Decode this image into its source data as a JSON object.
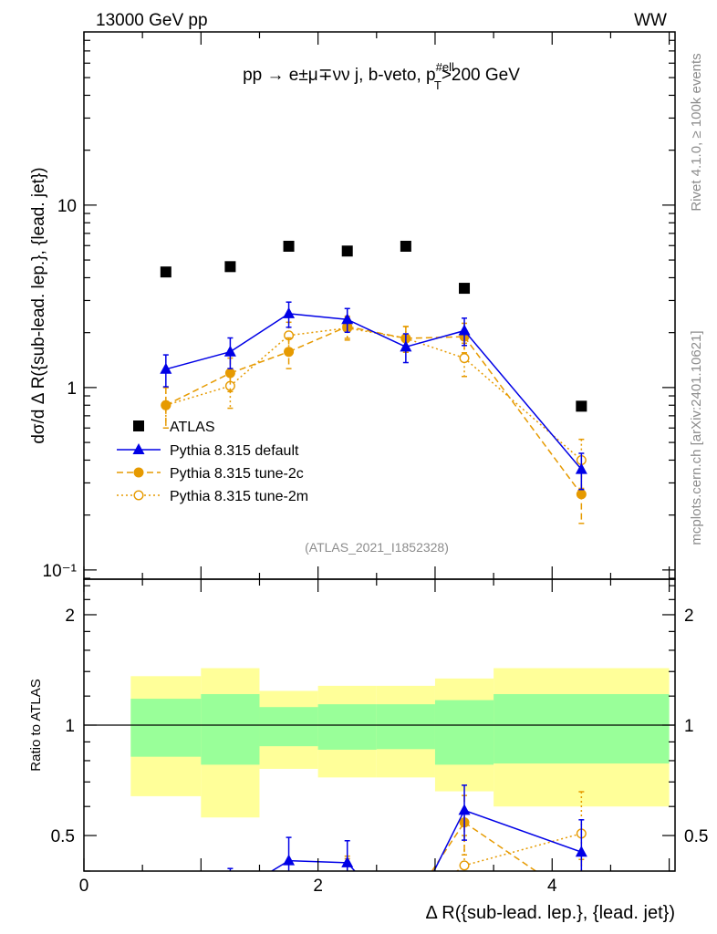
{
  "header": {
    "energy_label": "13000 GeV pp",
    "process_tag": "WW"
  },
  "side_labels": {
    "rivet": "Rivet 4.1.0, ≥ 100k events",
    "mcplots": "mcplots.cern.ch [arXiv:2401.10621]"
  },
  "analysis_id": "(ATLAS_2021_I1852328)",
  "process_label": {
    "main": "pp → e±μ∓νν j, b-veto, p",
    "sup": "#ell",
    "sub": "T",
    "tail": ">200 GeV"
  },
  "chart_data": [
    {
      "type": "scatter",
      "panel": "main",
      "title": "pp → e±μ∓νν j, b-veto, pT(#ell)>200 GeV",
      "ylabel": "dσ/d Δ R({sub-lead. lep.}, {lead. jet})",
      "xlabel": "Δ R({sub-lead. lep.}, {lead. jet})",
      "yscale": "log",
      "ylim": [
        0.089,
        89
      ],
      "xlim": [
        0,
        5.05
      ],
      "ytick_labels": [
        "10⁻¹",
        "1",
        "10"
      ],
      "ytick_values": [
        0.1,
        1,
        10
      ],
      "xtick_labels": [
        "0",
        "2",
        "4"
      ],
      "xtick_values": [
        0,
        2,
        4
      ],
      "legend_position": "lower-left",
      "bin_edges": [
        0.4,
        1.0,
        1.5,
        2.0,
        2.5,
        3.0,
        3.5,
        5.0
      ],
      "x": [
        0.7,
        1.25,
        1.75,
        2.25,
        2.75,
        3.25,
        4.25
      ],
      "series": [
        {
          "name": "ATLAS",
          "marker": "square",
          "color": "#000000",
          "values": [
            4.3,
            4.6,
            5.95,
            5.6,
            5.95,
            3.5,
            0.79
          ]
        },
        {
          "name": "Pythia 8.315 default",
          "marker": "triangle",
          "line": "solid",
          "color": "#0000e6",
          "values": [
            1.26,
            1.57,
            2.54,
            2.36,
            1.67,
            2.05,
            0.356
          ],
          "errors": [
            0.25,
            0.3,
            0.4,
            0.35,
            0.3,
            0.35,
            0.08
          ]
        },
        {
          "name": "Pythia 8.315 tune-2c",
          "marker": "circle",
          "line": "dashed",
          "color": "#e69a00",
          "values": [
            0.8,
            1.2,
            1.57,
            2.16,
            1.86,
            1.9,
            0.26
          ],
          "errors": [
            0.2,
            0.25,
            0.3,
            0.3,
            0.3,
            0.35,
            0.08
          ]
        },
        {
          "name": "Pythia 8.315 tune-2m",
          "marker": "open-circle",
          "line": "dotted",
          "color": "#e69a00",
          "values": [
            0.8,
            1.02,
            1.93,
            2.12,
            1.86,
            1.45,
            0.4
          ],
          "errors": [
            0.2,
            0.25,
            0.35,
            0.3,
            0.3,
            0.3,
            0.12
          ]
        }
      ]
    },
    {
      "type": "area",
      "panel": "ratio",
      "ylabel": "Ratio to ATLAS",
      "yscale": "log2",
      "ylim": [
        0.4,
        2.5
      ],
      "ytick_labels": [
        "0.5",
        "1",
        "2"
      ],
      "ytick_values": [
        0.5,
        1,
        2
      ],
      "band_inner": [
        [
          0.82,
          1.18
        ],
        [
          0.78,
          1.215
        ],
        [
          0.876,
          1.12
        ],
        [
          0.857,
          1.14
        ],
        [
          0.86,
          1.14
        ],
        [
          0.78,
          1.17
        ],
        [
          0.786,
          1.215
        ]
      ],
      "band_outer": [
        [
          0.64,
          1.36
        ],
        [
          0.56,
          1.43
        ],
        [
          0.76,
          1.24
        ],
        [
          0.72,
          1.28
        ],
        [
          0.72,
          1.28
        ],
        [
          0.66,
          1.34
        ],
        [
          0.6,
          1.43
        ]
      ],
      "band_inner_color": "#99ff99",
      "band_outer_color": "#ffff99"
    }
  ]
}
